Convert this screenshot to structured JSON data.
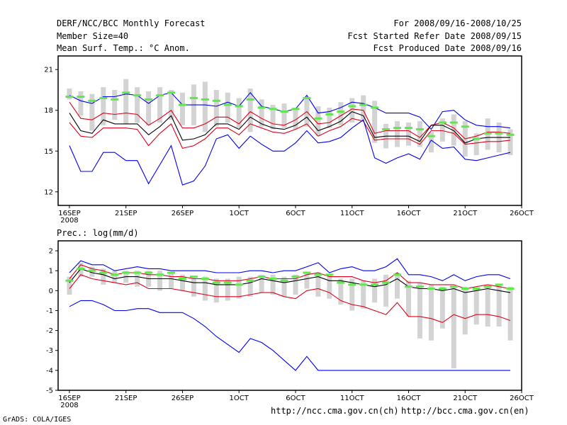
{
  "header": {
    "title": "DERF/NCC/BCC Monthly Forecast",
    "member_size": "Member Size=40",
    "variable": "Mean Surf. Temp.: °C Anom.",
    "period": "For 2008/09/16-2008/10/25",
    "started": "Fcst Started Refer Date 2008/09/15",
    "produced": "Fcst Produced Date 2008/09/16"
  },
  "footer": {
    "credit": "GrADS: COLA/IGES",
    "url_ncc": "http://ncc.cma.gov.cn(ch)",
    "url_bcc": "http://bcc.cma.gov.cn(en)"
  },
  "colors": {
    "box": "#d3d3d3",
    "mean": "#000000",
    "spread": "#e0001b",
    "extreme": "#0000ee",
    "ensemble_marker": "#5ee84a"
  },
  "chart_data": [
    {
      "type": "line",
      "title": "Mean Surf. Temp.: °C Anom.",
      "ylim": [
        11,
        22
      ],
      "yticks": [
        12,
        15,
        18,
        21
      ],
      "x_ticks": [
        {
          "day": 0,
          "label": "16SEP",
          "sub": "2008"
        },
        {
          "day": 5,
          "label": "21SEP"
        },
        {
          "day": 10,
          "label": "26SEP"
        },
        {
          "day": 15,
          "label": "1OCT"
        },
        {
          "day": 20,
          "label": "6OCT"
        },
        {
          "day": 25,
          "label": "11OCT"
        },
        {
          "day": 30,
          "label": "16OCT"
        },
        {
          "day": 35,
          "label": "21OCT"
        },
        {
          "day": 40,
          "label": "26OCT"
        }
      ],
      "x_range": [
        -1,
        40
      ],
      "days": [
        0,
        1,
        2,
        3,
        4,
        5,
        6,
        7,
        8,
        9,
        10,
        11,
        12,
        13,
        14,
        15,
        16,
        17,
        18,
        19,
        20,
        21,
        22,
        23,
        24,
        25,
        26,
        27,
        28,
        29,
        30,
        31,
        32,
        33,
        34,
        35,
        36,
        37,
        38,
        39
      ],
      "series": [
        {
          "name": "max",
          "values": [
            19.1,
            18.7,
            18.5,
            19.0,
            19.0,
            19.2,
            19.1,
            18.5,
            19.1,
            19.3,
            18.4,
            18.4,
            18.4,
            18.3,
            18.6,
            18.3,
            19.3,
            18.3,
            18.1,
            17.9,
            18.1,
            19.1,
            17.8,
            17.9,
            18.2,
            18.6,
            18.5,
            18.2,
            17.8,
            17.8,
            17.8,
            17.5,
            16.6,
            17.9,
            18.0,
            17.3,
            16.9,
            16.8,
            16.8,
            16.7
          ]
        },
        {
          "name": "upper",
          "values": [
            18.6,
            17.4,
            17.3,
            17.8,
            17.7,
            17.8,
            17.7,
            16.9,
            17.4,
            18.0,
            16.7,
            16.7,
            17.0,
            17.5,
            17.5,
            17.0,
            17.9,
            17.4,
            17.0,
            16.9,
            17.3,
            17.9,
            17.0,
            17.1,
            17.6,
            18.1,
            18.0,
            16.3,
            16.5,
            16.5,
            16.5,
            16.0,
            16.9,
            17.1,
            16.7,
            15.9,
            16.1,
            16.4,
            16.4,
            16.3
          ]
        },
        {
          "name": "mean",
          "values": [
            17.8,
            16.5,
            16.3,
            17.3,
            17.0,
            17.0,
            17.0,
            16.2,
            16.8,
            17.6,
            15.8,
            15.9,
            16.2,
            17.0,
            17.0,
            16.6,
            17.5,
            17.0,
            16.7,
            16.6,
            16.9,
            17.5,
            16.5,
            16.8,
            17.2,
            17.9,
            17.6,
            16.0,
            16.1,
            16.1,
            16.1,
            15.7,
            16.9,
            16.9,
            16.5,
            15.6,
            15.9,
            16.0,
            16.0,
            16.0
          ]
        },
        {
          "name": "lower",
          "values": [
            17.1,
            16.1,
            16.0,
            16.7,
            16.7,
            16.7,
            16.6,
            15.4,
            16.3,
            17.0,
            15.2,
            15.4,
            15.9,
            16.7,
            16.7,
            16.2,
            17.0,
            16.7,
            16.4,
            16.3,
            16.6,
            17.0,
            16.1,
            16.5,
            16.8,
            17.4,
            17.2,
            15.8,
            15.9,
            15.9,
            15.9,
            15.5,
            16.5,
            16.5,
            16.3,
            15.5,
            15.6,
            15.7,
            15.7,
            15.8
          ]
        },
        {
          "name": "min",
          "values": [
            15.4,
            13.5,
            13.5,
            14.9,
            14.9,
            14.3,
            14.3,
            12.6,
            14.0,
            15.4,
            12.5,
            12.8,
            13.9,
            15.9,
            16.2,
            15.2,
            16.1,
            15.5,
            15.0,
            15.0,
            15.6,
            16.5,
            15.6,
            15.7,
            16.0,
            16.7,
            17.3,
            14.5,
            14.1,
            14.5,
            14.8,
            14.4,
            15.8,
            15.2,
            15.3,
            14.4,
            14.3,
            14.5,
            14.7,
            14.9
          ]
        },
        {
          "name": "ensemble-marker",
          "values": [
            19.0,
            19.0,
            18.7,
            18.9,
            18.8,
            19.3,
            19.1,
            18.8,
            19.1,
            19.3,
            18.4,
            18.9,
            18.8,
            18.7,
            18.4,
            18.3,
            18.8,
            18.2,
            18.1,
            17.9,
            18.1,
            18.9,
            17.4,
            17.7,
            17.9,
            18.3,
            18.4,
            18.2,
            16.6,
            16.7,
            16.7,
            16.6,
            16.1,
            17.1,
            17.1,
            16.8,
            15.9,
            16.3,
            16.3,
            16.2
          ]
        }
      ],
      "boxes": [
        {
          "day": 0,
          "low": 18.8,
          "high": 19.6
        },
        {
          "day": 1,
          "low": 17.6,
          "high": 19.4
        },
        {
          "day": 2,
          "low": 16.5,
          "high": 19.2
        },
        {
          "day": 3,
          "low": 16.9,
          "high": 19.7
        },
        {
          "day": 4,
          "low": 17.3,
          "high": 19.5
        },
        {
          "day": 5,
          "low": 17.0,
          "high": 20.3
        },
        {
          "day": 6,
          "low": 17.1,
          "high": 19.7
        },
        {
          "day": 7,
          "low": 16.9,
          "high": 19.4
        },
        {
          "day": 8,
          "low": 17.1,
          "high": 19.7
        },
        {
          "day": 9,
          "low": 17.3,
          "high": 19.5
        },
        {
          "day": 10,
          "low": 16.9,
          "high": 19.3
        },
        {
          "day": 11,
          "low": 16.9,
          "high": 19.9
        },
        {
          "day": 12,
          "low": 16.4,
          "high": 20.1
        },
        {
          "day": 13,
          "low": 16.8,
          "high": 19.5
        },
        {
          "day": 14,
          "low": 17.1,
          "high": 19.3
        },
        {
          "day": 15,
          "low": 16.7,
          "high": 18.9
        },
        {
          "day": 16,
          "low": 16.4,
          "high": 19.6
        },
        {
          "day": 17,
          "low": 16.8,
          "high": 18.8
        },
        {
          "day": 18,
          "low": 16.6,
          "high": 18.4
        },
        {
          "day": 19,
          "low": 16.7,
          "high": 18.5
        },
        {
          "day": 20,
          "low": 16.6,
          "high": 18.2
        },
        {
          "day": 21,
          "low": 16.8,
          "high": 19.0
        },
        {
          "day": 22,
          "low": 16.1,
          "high": 18.3
        },
        {
          "day": 23,
          "low": 16.7,
          "high": 18.2
        },
        {
          "day": 24,
          "low": 16.9,
          "high": 18.6
        },
        {
          "day": 25,
          "low": 17.1,
          "high": 18.9
        },
        {
          "day": 26,
          "low": 17.3,
          "high": 19.1
        },
        {
          "day": 27,
          "low": 15.6,
          "high": 18.7
        },
        {
          "day": 28,
          "low": 15.2,
          "high": 17.0
        },
        {
          "day": 29,
          "low": 15.3,
          "high": 17.2
        },
        {
          "day": 30,
          "low": 15.4,
          "high": 17.1
        },
        {
          "day": 31,
          "low": 15.3,
          "high": 17.2
        },
        {
          "day": 32,
          "low": 14.9,
          "high": 16.4
        },
        {
          "day": 33,
          "low": 15.7,
          "high": 17.4
        },
        {
          "day": 34,
          "low": 15.4,
          "high": 17.7
        },
        {
          "day": 35,
          "low": 14.6,
          "high": 17.2
        },
        {
          "day": 36,
          "low": 14.7,
          "high": 16.3
        },
        {
          "day": 37,
          "low": 15.1,
          "high": 17.4
        },
        {
          "day": 38,
          "low": 14.9,
          "high": 17.1
        },
        {
          "day": 39,
          "low": 14.7,
          "high": 16.6
        }
      ]
    },
    {
      "type": "line",
      "title": "Prec.: log(mm/d)",
      "ylim": [
        -5,
        2.5
      ],
      "yticks": [
        -5,
        -4,
        -3,
        -2,
        -1,
        0,
        1,
        2
      ],
      "x_ticks": [
        {
          "day": 0,
          "label": "16SEP",
          "sub": "2008"
        },
        {
          "day": 5,
          "label": "21SEP"
        },
        {
          "day": 10,
          "label": "26SEP"
        },
        {
          "day": 15,
          "label": "1OCT"
        },
        {
          "day": 20,
          "label": "6OCT"
        },
        {
          "day": 25,
          "label": "11OCT"
        },
        {
          "day": 30,
          "label": "16OCT"
        },
        {
          "day": 35,
          "label": "21OCT"
        },
        {
          "day": 40,
          "label": "26OCT"
        }
      ],
      "x_range": [
        -1,
        40
      ],
      "days": [
        0,
        1,
        2,
        3,
        4,
        5,
        6,
        7,
        8,
        9,
        10,
        11,
        12,
        13,
        14,
        15,
        16,
        17,
        18,
        19,
        20,
        21,
        22,
        23,
        24,
        25,
        26,
        27,
        28,
        29,
        30,
        31,
        32,
        33,
        34,
        35,
        36,
        37,
        38,
        39
      ],
      "series": [
        {
          "name": "max",
          "values": [
            0.9,
            1.5,
            1.3,
            1.3,
            1.0,
            1.1,
            1.2,
            1.1,
            1.1,
            1.0,
            1.0,
            1.0,
            1.0,
            0.9,
            0.9,
            0.9,
            1.0,
            1.0,
            0.9,
            1.0,
            1.0,
            1.2,
            1.4,
            0.9,
            1.1,
            1.2,
            1.0,
            1.0,
            1.2,
            1.6,
            0.8,
            0.8,
            0.7,
            0.5,
            0.8,
            0.5,
            0.7,
            0.8,
            0.8,
            0.6
          ]
        },
        {
          "name": "upper",
          "values": [
            0.6,
            1.3,
            1.1,
            1.0,
            0.8,
            0.9,
            0.9,
            0.8,
            0.8,
            0.7,
            0.7,
            0.6,
            0.6,
            0.5,
            0.5,
            0.5,
            0.6,
            0.7,
            0.6,
            0.6,
            0.6,
            0.8,
            0.9,
            0.7,
            0.7,
            0.7,
            0.5,
            0.4,
            0.5,
            0.9,
            0.4,
            0.4,
            0.3,
            0.3,
            0.3,
            0.1,
            0.2,
            0.3,
            0.2,
            0.1
          ]
        },
        {
          "name": "mean",
          "values": [
            0.4,
            1.1,
            0.9,
            0.8,
            0.6,
            0.7,
            0.7,
            0.6,
            0.6,
            0.6,
            0.5,
            0.4,
            0.4,
            0.3,
            0.3,
            0.3,
            0.4,
            0.6,
            0.5,
            0.4,
            0.5,
            0.6,
            0.7,
            0.5,
            0.5,
            0.4,
            0.3,
            0.2,
            0.3,
            0.6,
            0.2,
            0.1,
            0.1,
            0.0,
            0.1,
            -0.1,
            0.0,
            0.1,
            0.0,
            -0.1
          ]
        },
        {
          "name": "lower",
          "values": [
            0.1,
            0.8,
            0.6,
            0.5,
            0.4,
            0.3,
            0.4,
            0.1,
            0.1,
            0.1,
            0.0,
            -0.1,
            -0.2,
            -0.3,
            -0.3,
            -0.3,
            -0.2,
            -0.1,
            -0.1,
            -0.3,
            -0.4,
            0.0,
            0.1,
            -0.1,
            -0.5,
            -0.7,
            -0.8,
            -1.0,
            -1.2,
            -0.6,
            -1.3,
            -1.3,
            -1.4,
            -1.6,
            -1.2,
            -1.4,
            -1.2,
            -1.2,
            -1.3,
            -1.5
          ]
        },
        {
          "name": "min",
          "values": [
            -0.8,
            -0.5,
            -0.5,
            -0.7,
            -1.0,
            -1.0,
            -0.9,
            -0.9,
            -1.1,
            -1.1,
            -1.1,
            -1.4,
            -1.8,
            -2.3,
            -2.7,
            -3.1,
            -2.4,
            -2.6,
            -3.0,
            -3.5,
            -4.0,
            -3.3,
            -4.0,
            -4.0,
            -4.0,
            -4.0,
            -4.0,
            -4.0,
            -4.0,
            -4.0,
            -4.0,
            -4.0,
            -4.0,
            -4.0,
            -4.0,
            -4.0,
            -4.0,
            -4.0,
            -4.0,
            -4.0
          ]
        },
        {
          "name": "ensemble-marker",
          "values": [
            0.5,
            1.1,
            1.0,
            0.9,
            0.8,
            0.9,
            0.9,
            0.9,
            0.8,
            0.9,
            0.6,
            0.7,
            0.6,
            0.4,
            0.4,
            0.3,
            0.5,
            0.7,
            0.6,
            0.5,
            0.7,
            0.9,
            0.8,
            0.8,
            0.4,
            0.3,
            0.3,
            0.3,
            0.4,
            0.8,
            0.2,
            0.2,
            0.1,
            0.1,
            0.2,
            0.1,
            0.1,
            0.2,
            0.3,
            0.1
          ]
        }
      ],
      "boxes": [
        {
          "day": 0,
          "low": -0.2,
          "high": 0.7
        },
        {
          "day": 1,
          "low": 0.7,
          "high": 1.4
        },
        {
          "day": 2,
          "low": 0.7,
          "high": 1.2
        },
        {
          "day": 3,
          "low": 0.3,
          "high": 1.1
        },
        {
          "day": 4,
          "low": 0.4,
          "high": 1.0
        },
        {
          "day": 5,
          "low": 0.4,
          "high": 1.0
        },
        {
          "day": 6,
          "low": 0.2,
          "high": 1.0
        },
        {
          "day": 7,
          "low": 0.2,
          "high": 1.0
        },
        {
          "day": 8,
          "low": 0.0,
          "high": 1.0
        },
        {
          "day": 9,
          "low": 0.1,
          "high": 0.9
        },
        {
          "day": 10,
          "low": 0.0,
          "high": 0.8
        },
        {
          "day": 11,
          "low": -0.3,
          "high": 0.7
        },
        {
          "day": 12,
          "low": -0.5,
          "high": 0.7
        },
        {
          "day": 13,
          "low": -0.6,
          "high": 0.6
        },
        {
          "day": 14,
          "low": -0.5,
          "high": 0.6
        },
        {
          "day": 15,
          "low": -0.4,
          "high": 0.7
        },
        {
          "day": 16,
          "low": -0.3,
          "high": 0.7
        },
        {
          "day": 17,
          "low": -0.1,
          "high": 0.8
        },
        {
          "day": 18,
          "low": -0.2,
          "high": 0.8
        },
        {
          "day": 19,
          "low": -0.3,
          "high": 0.7
        },
        {
          "day": 20,
          "low": -0.2,
          "high": 0.8
        },
        {
          "day": 21,
          "low": 0.1,
          "high": 0.9
        },
        {
          "day": 22,
          "low": -0.3,
          "high": 0.9
        },
        {
          "day": 23,
          "low": -0.4,
          "high": 0.8
        },
        {
          "day": 24,
          "low": -0.7,
          "high": 0.6
        },
        {
          "day": 25,
          "low": -1.0,
          "high": 0.6
        },
        {
          "day": 26,
          "low": -0.9,
          "high": 0.5
        },
        {
          "day": 27,
          "low": -0.6,
          "high": 0.6
        },
        {
          "day": 28,
          "low": -0.8,
          "high": 0.8
        },
        {
          "day": 29,
          "low": -0.4,
          "high": 0.9
        },
        {
          "day": 30,
          "low": -1.3,
          "high": 0.5
        },
        {
          "day": 31,
          "low": -2.4,
          "high": 0.4
        },
        {
          "day": 32,
          "low": -2.5,
          "high": 0.3
        },
        {
          "day": 33,
          "low": -1.9,
          "high": 0.2
        },
        {
          "day": 34,
          "low": -3.9,
          "high": 0.2
        },
        {
          "day": 35,
          "low": -2.2,
          "high": 0.2
        },
        {
          "day": 36,
          "low": -1.7,
          "high": 0.1
        },
        {
          "day": 37,
          "low": -1.8,
          "high": 0.2
        },
        {
          "day": 38,
          "low": -1.8,
          "high": 0.3
        },
        {
          "day": 39,
          "low": -2.5,
          "high": 0.2
        }
      ]
    }
  ]
}
